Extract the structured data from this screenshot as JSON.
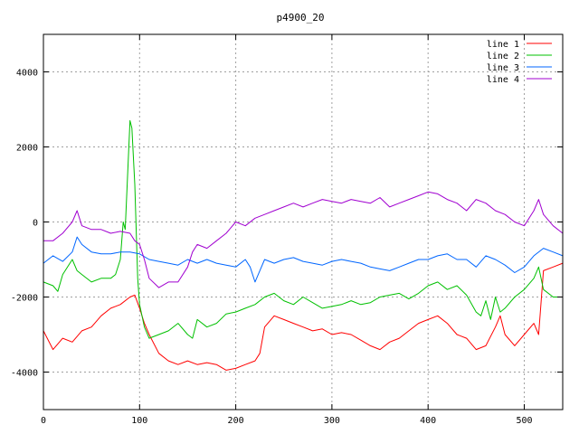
{
  "chart_data": {
    "type": "line",
    "title": "p4900_20",
    "xlabel": "",
    "ylabel": "",
    "xlim": [
      0,
      540
    ],
    "ylim": [
      -5000,
      5000
    ],
    "xticks": [
      0,
      100,
      200,
      300,
      400,
      500
    ],
    "yticks": [
      -4000,
      -2000,
      0,
      2000,
      4000
    ],
    "grid": true,
    "legend_position": "top-right",
    "series": [
      {
        "name": "line 1",
        "color": "#ff0000",
        "x": [
          0,
          10,
          20,
          30,
          40,
          50,
          60,
          70,
          80,
          90,
          95,
          100,
          105,
          110,
          120,
          130,
          140,
          150,
          160,
          170,
          180,
          190,
          200,
          210,
          220,
          225,
          230,
          240,
          250,
          260,
          270,
          280,
          290,
          300,
          310,
          320,
          330,
          340,
          350,
          360,
          370,
          380,
          390,
          400,
          410,
          420,
          430,
          440,
          450,
          460,
          470,
          475,
          480,
          490,
          500,
          510,
          515,
          520,
          530,
          540
        ],
        "values": [
          -2900,
          -3400,
          -3100,
          -3200,
          -2900,
          -2800,
          -2500,
          -2300,
          -2200,
          -2000,
          -1950,
          -2300,
          -2700,
          -3000,
          -3500,
          -3700,
          -3800,
          -3700,
          -3800,
          -3750,
          -3800,
          -3950,
          -3900,
          -3800,
          -3700,
          -3500,
          -2800,
          -2500,
          -2600,
          -2700,
          -2800,
          -2900,
          -2850,
          -3000,
          -2950,
          -3000,
          -3150,
          -3300,
          -3400,
          -3200,
          -3100,
          -2900,
          -2700,
          -2600,
          -2500,
          -2700,
          -3000,
          -3100,
          -3400,
          -3300,
          -2800,
          -2500,
          -3000,
          -3300,
          -3000,
          -2700,
          -3000,
          -1300,
          -1200,
          -1100
        ]
      },
      {
        "name": "line 2",
        "color": "#00c000",
        "x": [
          0,
          10,
          15,
          20,
          30,
          35,
          40,
          50,
          60,
          70,
          75,
          80,
          83,
          85,
          88,
          90,
          92,
          95,
          98,
          100,
          105,
          110,
          120,
          130,
          140,
          150,
          155,
          160,
          170,
          180,
          190,
          200,
          210,
          220,
          230,
          240,
          250,
          260,
          270,
          280,
          290,
          300,
          310,
          320,
          330,
          340,
          350,
          360,
          370,
          380,
          390,
          400,
          410,
          420,
          430,
          440,
          450,
          455,
          460,
          465,
          470,
          475,
          480,
          490,
          500,
          510,
          515,
          520,
          530,
          540
        ],
        "values": [
          -1600,
          -1700,
          -1850,
          -1400,
          -1000,
          -1300,
          -1400,
          -1600,
          -1500,
          -1500,
          -1400,
          -1000,
          0,
          -200,
          1500,
          2700,
          2500,
          1000,
          -1500,
          -2200,
          -2800,
          -3100,
          -3000,
          -2900,
          -2700,
          -3000,
          -3100,
          -2600,
          -2800,
          -2700,
          -2450,
          -2400,
          -2300,
          -2200,
          -2000,
          -1900,
          -2100,
          -2200,
          -2000,
          -2150,
          -2300,
          -2250,
          -2200,
          -2100,
          -2200,
          -2150,
          -2000,
          -1950,
          -1900,
          -2050,
          -1900,
          -1700,
          -1600,
          -1800,
          -1700,
          -1950,
          -2400,
          -2500,
          -2100,
          -2600,
          -2000,
          -2400,
          -2300,
          -2000,
          -1800,
          -1500,
          -1200,
          -1800,
          -2000,
          -2000
        ]
      },
      {
        "name": "line 3",
        "color": "#0066ff",
        "x": [
          0,
          10,
          20,
          30,
          35,
          40,
          50,
          60,
          70,
          80,
          90,
          100,
          110,
          120,
          130,
          140,
          150,
          160,
          170,
          180,
          190,
          200,
          210,
          215,
          220,
          225,
          230,
          240,
          250,
          260,
          270,
          280,
          290,
          300,
          310,
          320,
          330,
          340,
          350,
          360,
          370,
          380,
          390,
          400,
          410,
          420,
          430,
          440,
          450,
          460,
          470,
          480,
          490,
          500,
          510,
          520,
          530,
          540
        ],
        "values": [
          -1100,
          -900,
          -1050,
          -800,
          -400,
          -600,
          -800,
          -850,
          -850,
          -800,
          -800,
          -850,
          -1000,
          -1050,
          -1100,
          -1150,
          -1000,
          -1100,
          -1000,
          -1100,
          -1150,
          -1200,
          -1000,
          -1200,
          -1600,
          -1300,
          -1000,
          -1100,
          -1000,
          -950,
          -1050,
          -1100,
          -1150,
          -1050,
          -1000,
          -1050,
          -1100,
          -1200,
          -1250,
          -1300,
          -1200,
          -1100,
          -1000,
          -1000,
          -900,
          -850,
          -1000,
          -1000,
          -1200,
          -900,
          -1000,
          -1150,
          -1350,
          -1200,
          -900,
          -700,
          -800,
          -900
        ]
      },
      {
        "name": "line 4",
        "color": "#a000d0",
        "x": [
          0,
          10,
          20,
          30,
          35,
          40,
          50,
          60,
          70,
          80,
          90,
          95,
          100,
          105,
          110,
          120,
          130,
          140,
          150,
          155,
          160,
          170,
          180,
          190,
          200,
          210,
          220,
          230,
          240,
          250,
          260,
          270,
          280,
          290,
          300,
          310,
          320,
          330,
          340,
          350,
          360,
          370,
          380,
          390,
          400,
          410,
          420,
          430,
          440,
          450,
          460,
          470,
          480,
          490,
          500,
          510,
          515,
          520,
          530,
          540
        ],
        "values": [
          -500,
          -500,
          -300,
          0,
          300,
          -100,
          -200,
          -200,
          -300,
          -250,
          -300,
          -500,
          -600,
          -1000,
          -1500,
          -1750,
          -1600,
          -1600,
          -1200,
          -800,
          -600,
          -700,
          -500,
          -300,
          0,
          -100,
          100,
          200,
          300,
          400,
          500,
          400,
          500,
          600,
          550,
          500,
          600,
          550,
          500,
          650,
          400,
          500,
          600,
          700,
          800,
          750,
          600,
          500,
          300,
          600,
          500,
          300,
          200,
          0,
          -100,
          300,
          600,
          200,
          -100,
          -300
        ]
      }
    ]
  }
}
